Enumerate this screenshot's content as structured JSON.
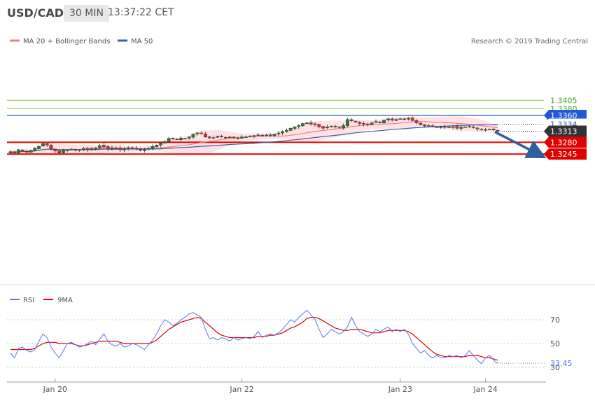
{
  "header": {
    "symbol": "USD/CAD",
    "timeframe": "30 MIN",
    "time": "13:37:22 CET"
  },
  "legend": {
    "ma20_label": "MA 20 + Bollinger Bands",
    "ma50_label": "MA 50",
    "copyright": "Research © 2019 Trading Central",
    "ma20_color": "#f08080",
    "ma50_color": "#3a5fa0"
  },
  "colors": {
    "up": "#2e7d32",
    "down": "#d32f2f",
    "band": "#ffd6d9",
    "resistance": "#8dc63f",
    "support": "#e00000",
    "ma_blue": "#1e5ad8",
    "arrow": "#2f5f9e",
    "rsi": "#5577ee",
    "rsi_ma": "#e00000"
  },
  "chart_data": {
    "type": "candlestick",
    "y_range": [
      1.3232,
      1.3415
    ],
    "levels": [
      {
        "value": "1.3405",
        "kind": "resistance"
      },
      {
        "value": "1.3380",
        "kind": "resistance"
      },
      {
        "value": "1.3360",
        "kind": "pivot"
      },
      {
        "value": "1.3334",
        "kind": "ma50"
      },
      {
        "value": "1.3313",
        "kind": "last"
      },
      {
        "value": "1.3280",
        "kind": "support"
      },
      {
        "value": "1.3245",
        "kind": "support"
      }
    ],
    "x_labels": [
      {
        "label": "Jan 20",
        "index": 11
      },
      {
        "label": "Jan 22",
        "index": 57
      },
      {
        "label": "Jan 23",
        "index": 96
      },
      {
        "label": "Jan 24",
        "index": 117
      }
    ],
    "closes": [
      1.3252,
      1.3248,
      1.3258,
      1.3254,
      1.325,
      1.3256,
      1.3262,
      1.3268,
      1.3276,
      1.3272,
      1.326,
      1.3254,
      1.3248,
      1.3258,
      1.3257,
      1.326,
      1.3256,
      1.3258,
      1.3262,
      1.3258,
      1.3262,
      1.3264,
      1.327,
      1.3266,
      1.326,
      1.3264,
      1.3262,
      1.3258,
      1.3262,
      1.3264,
      1.3262,
      1.326,
      1.3256,
      1.3258,
      1.3262,
      1.3268,
      1.3272,
      1.3278,
      1.3282,
      1.3292,
      1.329,
      1.3288,
      1.3293,
      1.3291,
      1.3296,
      1.3304,
      1.3308,
      1.3306,
      1.3296,
      1.3293,
      1.3294,
      1.3298,
      1.3296,
      1.3294,
      1.3296,
      1.3294,
      1.3293,
      1.3296,
      1.3296,
      1.3298,
      1.33,
      1.3302,
      1.33,
      1.3302,
      1.33,
      1.3304,
      1.3308,
      1.3312,
      1.3316,
      1.3322,
      1.3326,
      1.333,
      1.3336,
      1.3338,
      1.3334,
      1.3332,
      1.3326,
      1.3322,
      1.3326,
      1.3328,
      1.3326,
      1.3324,
      1.333,
      1.3348,
      1.3344,
      1.334,
      1.3336,
      1.3334,
      1.3333,
      1.3338,
      1.3342,
      1.3338,
      1.3346,
      1.335,
      1.3346,
      1.3348,
      1.335,
      1.3348,
      1.3352,
      1.3345,
      1.3338,
      1.3332,
      1.3328,
      1.333,
      1.3326,
      1.3326,
      1.3326,
      1.3325,
      1.3324,
      1.3326,
      1.3322,
      1.3325,
      1.3326,
      1.3327,
      1.3324,
      1.332,
      1.3317,
      1.3318,
      1.3319,
      1.3317,
      1.3313
    ],
    "rsi": {
      "label": "RSI",
      "ma_label": "9MA",
      "last_value": "33.45",
      "ticks": [
        "70",
        "50",
        "30"
      ],
      "values": [
        42,
        38,
        46,
        47,
        44,
        43,
        45,
        52,
        58,
        55,
        47,
        42,
        38,
        44,
        50,
        51,
        49,
        47,
        48,
        50,
        52,
        49,
        54,
        58,
        52,
        49,
        48,
        50,
        47,
        48,
        50,
        49,
        47,
        45,
        49,
        53,
        58,
        65,
        70,
        68,
        65,
        67,
        70,
        72,
        75,
        76,
        74,
        72,
        62,
        54,
        55,
        53,
        55,
        54,
        52,
        55,
        53,
        54,
        55,
        54,
        56,
        60,
        55,
        57,
        58,
        57,
        59,
        62,
        66,
        70,
        68,
        72,
        75,
        78,
        74,
        70,
        62,
        55,
        58,
        62,
        60,
        58,
        60,
        64,
        72,
        65,
        60,
        58,
        56,
        58,
        62,
        60,
        62,
        64,
        60,
        62,
        60,
        62,
        58,
        50,
        46,
        42,
        44,
        40,
        38,
        40,
        38,
        38,
        40,
        39,
        40,
        38,
        40,
        44,
        40,
        36,
        33,
        38,
        40,
        36,
        33.45
      ],
      "ma_values": [
        45,
        45,
        45,
        45,
        45,
        45,
        46,
        48,
        50,
        51,
        51,
        51,
        50,
        50,
        50,
        50,
        49,
        48,
        48,
        49,
        50,
        51,
        52,
        52,
        52,
        52,
        52,
        51,
        50,
        50,
        50,
        50,
        50,
        50,
        50,
        51,
        53,
        56,
        59,
        62,
        64,
        66,
        68,
        69,
        70,
        71,
        72,
        71,
        68,
        65,
        62,
        59,
        57,
        56,
        55,
        55,
        55,
        55,
        55,
        55,
        55,
        56,
        56,
        56,
        57,
        57,
        58,
        59,
        61,
        63,
        64,
        66,
        68,
        71,
        72,
        72,
        71,
        69,
        67,
        65,
        63,
        62,
        61,
        61,
        62,
        62,
        62,
        61,
        60,
        59,
        59,
        59,
        60,
        61,
        61,
        61,
        61,
        61,
        60,
        58,
        55,
        52,
        49,
        46,
        43,
        41,
        40,
        39,
        39,
        39,
        39,
        39,
        39,
        40,
        40,
        40,
        39,
        38,
        38,
        37,
        36
      ]
    }
  }
}
